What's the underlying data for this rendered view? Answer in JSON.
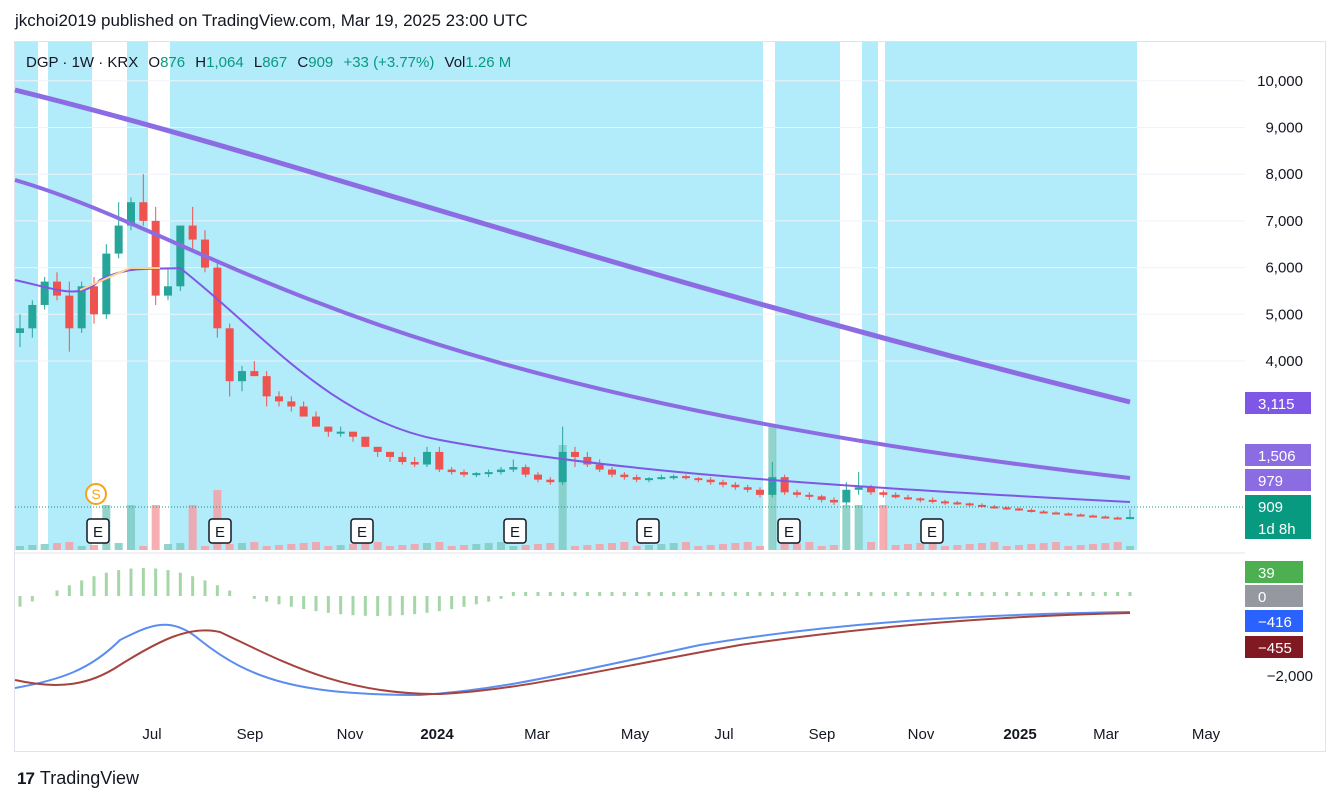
{
  "header": {
    "text": "jkchoi2019 published on TradingView.com, Mar 19, 2025 23:00 UTC"
  },
  "legend": {
    "symbol": "DGP · 1W · KRX",
    "open_label": "O",
    "open": "876",
    "high_label": "H",
    "high": "1,064",
    "low_label": "L",
    "low": "867",
    "close_label": "C",
    "close": "909",
    "change": "+33 (+3.77%)",
    "vol_label": "Vol",
    "vol": "1.26 M"
  },
  "footer": {
    "brand": "TradingView",
    "logo_glyph": "17"
  },
  "colors": {
    "up": "#26a69a",
    "down": "#ef5350",
    "band": "#b2ebf9",
    "ma_thick": "#8c6ce3",
    "ma_mid": "#8c6ce3",
    "ma_thin": "#7e57e6",
    "macd": "#5b8def",
    "signal": "#a6433f",
    "hist_pos": "#a5d6a7",
    "hist_neg": "#a5d6a7"
  },
  "chart_data": {
    "type": "candlestick",
    "x_ticks": [
      "Jul",
      "Sep",
      "Nov",
      "2024",
      "Mar",
      "May",
      "Jul",
      "Sep",
      "Nov",
      "2025",
      "Mar",
      "May"
    ],
    "y_ticks": [
      "10,000",
      "9,000",
      "8,000",
      "7,000",
      "6,000",
      "5,000",
      "4,000"
    ],
    "price_tags": [
      {
        "label": "3,115",
        "value": 3115,
        "color": "#7e57e6"
      },
      {
        "label": "1,506",
        "value": 1506,
        "color": "#8c6ce3"
      },
      {
        "label": "979",
        "value": 979,
        "color": "#8c6ce3"
      },
      {
        "label": "909",
        "value": 909,
        "color": "#089981"
      },
      {
        "label": "1d 8h",
        "value": 909,
        "color": "#089981"
      }
    ],
    "earnings_marker": "E",
    "split_marker": "S",
    "candles": [
      [
        4600,
        5000,
        4300,
        4700
      ],
      [
        4700,
        5300,
        4500,
        5200
      ],
      [
        5200,
        5800,
        5100,
        5700
      ],
      [
        5700,
        5900,
        5300,
        5400
      ],
      [
        5400,
        5700,
        4200,
        4700
      ],
      [
        4700,
        5700,
        4600,
        5600
      ],
      [
        5600,
        5800,
        4800,
        5000
      ],
      [
        5000,
        6500,
        4900,
        6300
      ],
      [
        6300,
        7400,
        6200,
        6900
      ],
      [
        6900,
        7500,
        6800,
        7400
      ],
      [
        7400,
        8000,
        6900,
        7000
      ],
      [
        7000,
        7300,
        5200,
        5400
      ],
      [
        5400,
        6000,
        5300,
        5600
      ],
      [
        5600,
        6900,
        5500,
        6900
      ],
      [
        6900,
        7300,
        6400,
        6600
      ],
      [
        6600,
        6800,
        5900,
        6000
      ],
      [
        6000,
        6100,
        4500,
        4700
      ],
      [
        4700,
        4800,
        3300,
        3600
      ],
      [
        3600,
        3900,
        3400,
        3800
      ],
      [
        3800,
        4000,
        3700,
        3700
      ],
      [
        3700,
        3800,
        3100,
        3300
      ],
      [
        3300,
        3400,
        3100,
        3200
      ],
      [
        3200,
        3300,
        3000,
        3100
      ],
      [
        3100,
        3200,
        2900,
        2900
      ],
      [
        2900,
        3000,
        2700,
        2700
      ],
      [
        2700,
        2700,
        2500,
        2600
      ],
      [
        2600,
        2700,
        2500,
        2600
      ],
      [
        2600,
        2600,
        2400,
        2500
      ],
      [
        2500,
        2500,
        2300,
        2300
      ],
      [
        2300,
        2300,
        2100,
        2200
      ],
      [
        2200,
        2200,
        2000,
        2100
      ],
      [
        2100,
        2200,
        1950,
        2000
      ],
      [
        2000,
        2100,
        1900,
        1950
      ],
      [
        1950,
        2300,
        1900,
        2200
      ],
      [
        2200,
        2300,
        1800,
        1850
      ],
      [
        1850,
        1900,
        1750,
        1800
      ],
      [
        1800,
        1850,
        1700,
        1750
      ],
      [
        1750,
        1800,
        1700,
        1780
      ],
      [
        1780,
        1850,
        1700,
        1800
      ],
      [
        1800,
        1900,
        1750,
        1850
      ],
      [
        1850,
        2050,
        1800,
        1900
      ],
      [
        1900,
        1950,
        1700,
        1750
      ],
      [
        1750,
        1800,
        1600,
        1650
      ],
      [
        1650,
        1700,
        1550,
        1600
      ],
      [
        1600,
        2700,
        1550,
        2200
      ],
      [
        2200,
        2300,
        1900,
        2100
      ],
      [
        2100,
        2200,
        1900,
        1950
      ],
      [
        1950,
        2050,
        1800,
        1850
      ],
      [
        1850,
        1900,
        1700,
        1750
      ],
      [
        1750,
        1800,
        1650,
        1700
      ],
      [
        1700,
        1750,
        1600,
        1650
      ],
      [
        1650,
        1700,
        1600,
        1680
      ],
      [
        1680,
        1750,
        1650,
        1700
      ],
      [
        1700,
        1750,
        1650,
        1720
      ],
      [
        1720,
        1750,
        1650,
        1680
      ],
      [
        1680,
        1700,
        1600,
        1650
      ],
      [
        1650,
        1700,
        1550,
        1600
      ],
      [
        1600,
        1650,
        1500,
        1550
      ],
      [
        1550,
        1600,
        1450,
        1500
      ],
      [
        1500,
        1550,
        1400,
        1450
      ],
      [
        1450,
        1500,
        1300,
        1350
      ],
      [
        1350,
        2000,
        1300,
        1700
      ],
      [
        1700,
        1750,
        1350,
        1400
      ],
      [
        1400,
        1450,
        1300,
        1350
      ],
      [
        1350,
        1400,
        1250,
        1320
      ],
      [
        1320,
        1350,
        1200,
        1250
      ],
      [
        1250,
        1300,
        1150,
        1200
      ],
      [
        1200,
        1600,
        1150,
        1450
      ],
      [
        1450,
        1800,
        1350,
        1500
      ],
      [
        1500,
        1550,
        1350,
        1400
      ],
      [
        1400,
        1450,
        1300,
        1350
      ],
      [
        1350,
        1400,
        1280,
        1300
      ],
      [
        1300,
        1350,
        1250,
        1280
      ],
      [
        1280,
        1300,
        1200,
        1250
      ],
      [
        1250,
        1300,
        1180,
        1220
      ],
      [
        1220,
        1250,
        1150,
        1200
      ],
      [
        1200,
        1230,
        1150,
        1180
      ],
      [
        1180,
        1200,
        1120,
        1150
      ],
      [
        1150,
        1180,
        1100,
        1120
      ],
      [
        1120,
        1150,
        1080,
        1100
      ],
      [
        1100,
        1120,
        1050,
        1080
      ],
      [
        1080,
        1100,
        1030,
        1050
      ],
      [
        1050,
        1080,
        1000,
        1020
      ],
      [
        1020,
        1050,
        980,
        1000
      ],
      [
        1000,
        1020,
        960,
        980
      ],
      [
        980,
        1000,
        940,
        960
      ],
      [
        960,
        980,
        920,
        940
      ],
      [
        940,
        960,
        900,
        920
      ],
      [
        920,
        940,
        880,
        900
      ],
      [
        900,
        920,
        870,
        880
      ],
      [
        876,
        1064,
        867,
        909
      ]
    ],
    "ma": {
      "thick_start": 9800,
      "thick_end": 3115,
      "mid_start": 7900,
      "mid_end": 1506,
      "thin_end": 979
    },
    "macd": {
      "ticks": [
        "39",
        "0",
        "−416",
        "−455",
        "−2,000"
      ]
    }
  }
}
